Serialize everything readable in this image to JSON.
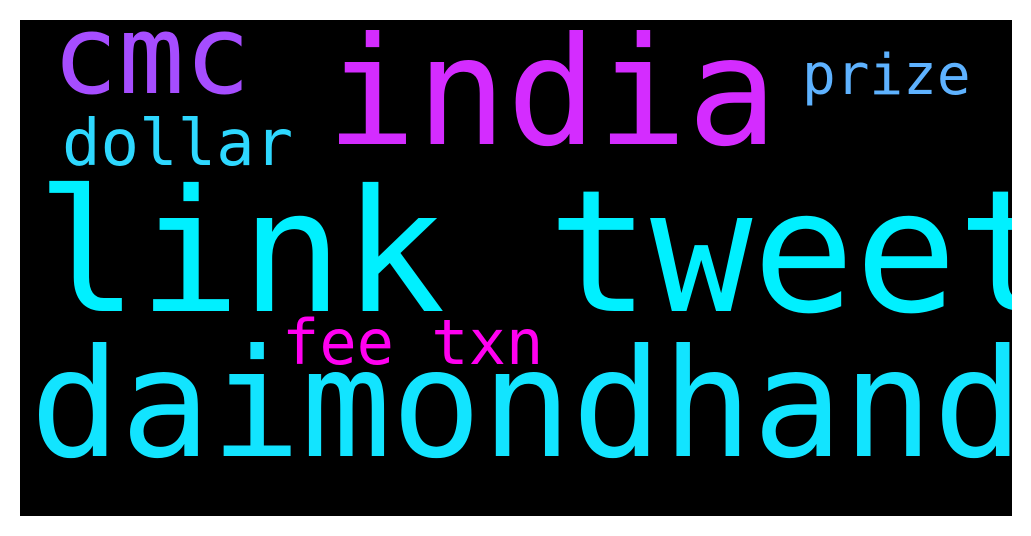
{
  "wordcloud": {
    "background_color": "#000000",
    "words": [
      {
        "text": "cmc",
        "color": "#a64dff"
      },
      {
        "text": "india",
        "color": "#d42cff"
      },
      {
        "text": "prize",
        "color": "#5eb2ff"
      },
      {
        "text": "dollar",
        "color": "#2ed8ff"
      },
      {
        "text": "link tweet",
        "color": "#00f0ff"
      },
      {
        "text": "fee txn",
        "color": "#ff00f0"
      },
      {
        "text": "daimondhand",
        "color": "#12e4ff"
      }
    ]
  }
}
